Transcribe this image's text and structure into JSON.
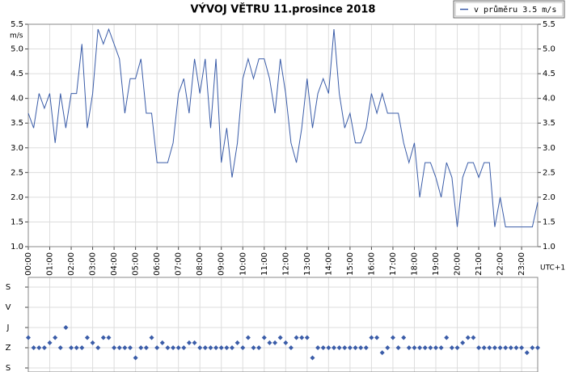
{
  "chart_data": [
    {
      "type": "line",
      "title": "VÝVOJ VĚTRU  11.prosince 2018",
      "y_label": "m/s",
      "x_label": "UTC+1",
      "categories": [
        "00:00",
        null,
        null,
        null,
        "01:00",
        null,
        null,
        null,
        "02:00",
        null,
        null,
        null,
        "03:00",
        null,
        null,
        null,
        "04:00",
        null,
        null,
        null,
        "05:00",
        null,
        null,
        null,
        "06:00",
        null,
        null,
        null,
        "07:00",
        null,
        null,
        null,
        "08:00",
        null,
        null,
        null,
        "09:00",
        null,
        null,
        null,
        "10:00",
        null,
        null,
        null,
        "11:00",
        null,
        null,
        null,
        "12:00",
        null,
        null,
        null,
        "13:00",
        null,
        null,
        null,
        "14:00",
        null,
        null,
        null,
        "15:00",
        null,
        null,
        null,
        "16:00",
        null,
        null,
        null,
        "17:00",
        null,
        null,
        null,
        "18:00",
        null,
        null,
        null,
        "19:00",
        null,
        null,
        null,
        "20:00",
        null,
        null,
        null,
        "21:00",
        null,
        null,
        null,
        "22:00",
        null,
        null,
        null,
        "23:00",
        null,
        null,
        null
      ],
      "series": [
        {
          "name": "v průměru 3.5 m/s",
          "color": "#3a5ca8",
          "values": [
            3.7,
            3.4,
            4.1,
            3.8,
            4.1,
            3.1,
            4.1,
            3.4,
            4.1,
            4.1,
            5.1,
            3.4,
            4.1,
            5.4,
            5.1,
            5.4,
            5.1,
            4.8,
            3.7,
            4.4,
            4.4,
            4.8,
            3.7,
            3.7,
            2.7,
            2.7,
            2.7,
            3.1,
            4.1,
            4.4,
            3.7,
            4.8,
            4.1,
            4.8,
            3.4,
            4.8,
            2.7,
            3.4,
            2.4,
            3.1,
            4.4,
            4.8,
            4.4,
            4.8,
            4.8,
            4.4,
            3.7,
            4.8,
            4.1,
            3.1,
            2.7,
            3.4,
            4.4,
            3.4,
            4.1,
            4.4,
            4.1,
            5.4,
            4.1,
            3.4,
            3.7,
            3.1,
            3.1,
            3.4,
            4.1,
            3.7,
            4.1,
            3.7,
            3.7,
            3.7,
            3.1,
            2.7,
            3.1,
            2.0,
            2.7,
            2.7,
            2.4,
            2.0,
            2.7,
            2.4,
            1.4,
            2.4,
            2.7,
            2.7,
            2.4,
            2.7,
            2.7,
            1.4,
            2.0,
            1.4,
            1.4,
            1.4,
            1.4,
            1.4,
            1.4,
            1.9
          ]
        }
      ],
      "ylim": [
        1,
        5.5
      ],
      "yticks": [
        {
          "value": 1,
          "label": "1.0"
        },
        1.5,
        {
          "value": 2,
          "label": "2.0"
        },
        2.5,
        {
          "value": 3,
          "label": "3.0"
        },
        3.5,
        {
          "value": 4,
          "label": "4.0"
        },
        4.5,
        {
          "value": 5,
          "label": "5.0"
        },
        5.5
      ],
      "grid": true,
      "legend": "upper right"
    },
    {
      "type": "scatter",
      "color": "#3a5ca8",
      "values": [
        225,
        270,
        270,
        270,
        248,
        225,
        270,
        180,
        270,
        270,
        270,
        225,
        248,
        270,
        225,
        225,
        270,
        270,
        270,
        270,
        315,
        270,
        270,
        225,
        270,
        248,
        270,
        270,
        270,
        270,
        248,
        248,
        270,
        270,
        270,
        270,
        270,
        270,
        270,
        248,
        270,
        225,
        270,
        270,
        225,
        248,
        248,
        225,
        248,
        270,
        225,
        225,
        225,
        315,
        270,
        270,
        270,
        270,
        270,
        270,
        270,
        270,
        270,
        270,
        225,
        225,
        292,
        270,
        225,
        270,
        225,
        270,
        270,
        270,
        270,
        270,
        270,
        270,
        225,
        270,
        270,
        248,
        225,
        225,
        270,
        270,
        270,
        270,
        270,
        270,
        270,
        270,
        270,
        292,
        270,
        270
      ],
      "ylim": [
        0,
        360
      ],
      "yticks": [
        {
          "value": 0,
          "label": "S"
        },
        {
          "value": 90,
          "label": "V"
        },
        {
          "value": 180,
          "label": "J"
        },
        {
          "value": 270,
          "label": "Z"
        },
        {
          "value": 360,
          "label": "S"
        }
      ],
      "grid": true
    }
  ]
}
